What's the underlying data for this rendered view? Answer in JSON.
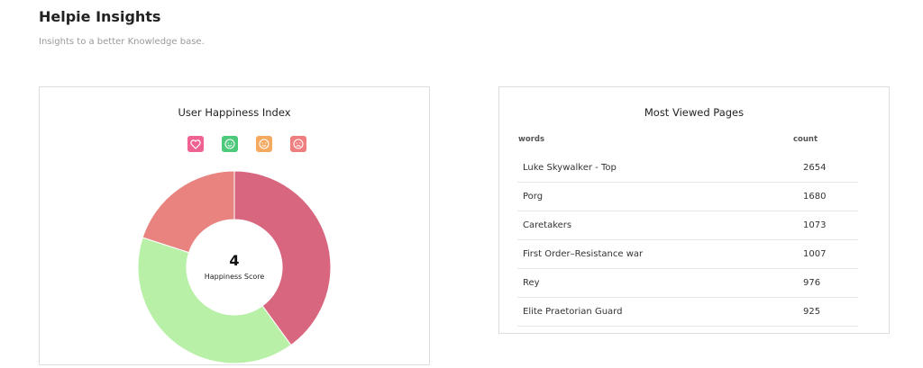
{
  "header": {
    "title": "Helpie Insights",
    "subtitle": "Insights to a better Knowledge base."
  },
  "chart_data": {
    "type": "donut",
    "title": "User Happiness Index",
    "center_value": "4",
    "center_label": "Happiness Score",
    "values": [
      40,
      40,
      0,
      20
    ],
    "colors": [
      "#d9667f",
      "#b8f0a8",
      "#f5a95f",
      "#e8837f"
    ],
    "legend_colors": [
      "#f06292",
      "#4cc97a",
      "#f5a95f",
      "#ef7e7e"
    ]
  },
  "table": {
    "title": "Most Viewed Pages",
    "columns": [
      "words",
      "count"
    ],
    "rows": [
      [
        "Luke Skywalker - Top",
        "2654"
      ],
      [
        "Porg",
        "1680"
      ],
      [
        "Caretakers",
        "1073"
      ],
      [
        "First Order–Resistance war",
        "1007"
      ],
      [
        "Rey",
        "976"
      ],
      [
        "Elite Praetorian Guard",
        "925"
      ]
    ]
  }
}
